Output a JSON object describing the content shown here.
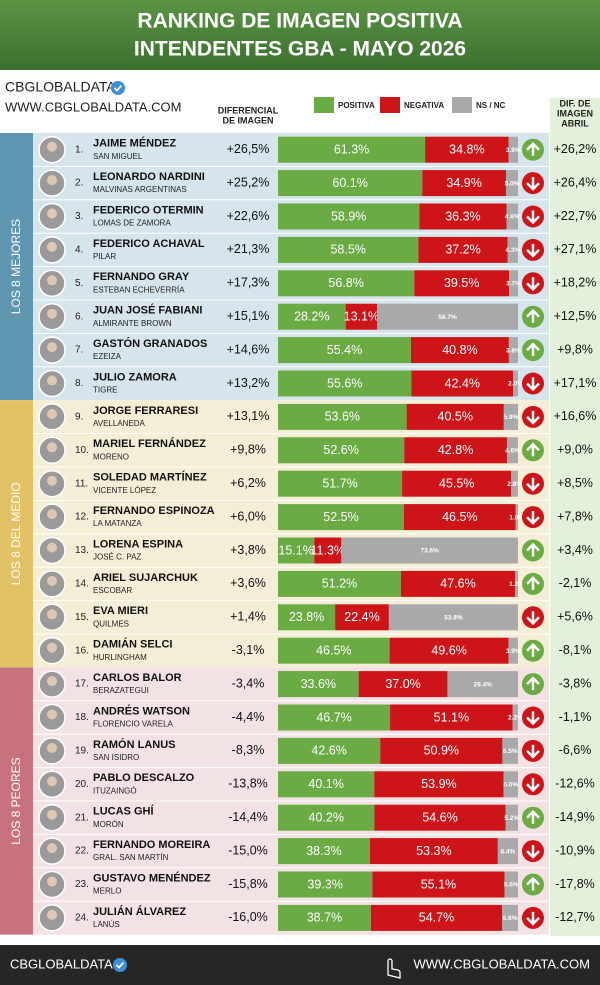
{
  "header": {
    "title_lines": [
      "RANKING DE IMAGEN POSITIVA",
      "INTENDENTES GBA - MAYO 2026"
    ]
  },
  "brand": {
    "name": "CBGLOBALDATA",
    "url": "WWW.CBGLOBALDATA.COM"
  },
  "columns": {
    "diff": [
      "DIFERENCIAL",
      "DE IMAGEN"
    ],
    "prev": [
      "DIF. DE",
      "IMAGEN",
      "ABRIL"
    ]
  },
  "legend": [
    {
      "name": "POSITIVA",
      "color": "#6aab43"
    },
    {
      "name": "NEGATIVA",
      "color": "#cc1419"
    },
    {
      "name": "NS / NC",
      "color": "#a9a9a9"
    }
  ],
  "groups": [
    {
      "label": "LOS 8 MEJORES",
      "color": "#5f97b2",
      "bg": "#d5e5eb",
      "rows": [
        {
          "rank": "1.",
          "name": "JAIME MÉNDEZ",
          "place": "SAN MIGUEL",
          "diff": "+26,5%",
          "values": [
            61.3,
            34.8,
            3.9
          ],
          "value_labels": [
            "61.3%",
            "34.8%",
            "3.9%"
          ],
          "trend": "up",
          "prev": "+26,2%"
        },
        {
          "rank": "2.",
          "name": "LEONARDO NARDINI",
          "place": "MALVINAS ARGENTINAS",
          "diff": "+25,2%",
          "values": [
            60.1,
            34.9,
            5.0
          ],
          "value_labels": [
            "60.1%",
            "34.9%",
            "5.0%"
          ],
          "trend": "down",
          "prev": "+26,4%"
        },
        {
          "rank": "3.",
          "name": "FEDERICO OTERMIN",
          "place": "LOMAS DE ZAMORA",
          "diff": "+22,6%",
          "values": [
            58.9,
            36.3,
            4.8
          ],
          "value_labels": [
            "58.9%",
            "36.3%",
            "4.8%"
          ],
          "trend": "down",
          "prev": "+22,7%"
        },
        {
          "rank": "4.",
          "name": "FEDERICO ACHAVAL",
          "place": "PILAR",
          "diff": "+21,3%",
          "values": [
            58.5,
            37.2,
            4.3
          ],
          "value_labels": [
            "58.5%",
            "37.2%",
            "4.3%"
          ],
          "trend": "down",
          "prev": "+27,1%"
        },
        {
          "rank": "5.",
          "name": "FERNANDO GRAY",
          "place": "ESTEBAN ECHEVERRÍA",
          "diff": "+17,3%",
          "values": [
            56.8,
            39.5,
            3.7
          ],
          "value_labels": [
            "56.8%",
            "39.5%",
            "3.7%"
          ],
          "trend": "down",
          "prev": "+18,2%"
        },
        {
          "rank": "6.",
          "name": "JUAN JOSÉ FABIANI",
          "place": "ALMIRANTE BROWN",
          "diff": "+15,1%",
          "values": [
            28.2,
            13.1,
            58.7
          ],
          "value_labels": [
            "28.2%",
            "13.1%",
            "58.7%"
          ],
          "trend": "up",
          "prev": "+12,5%"
        },
        {
          "rank": "7.",
          "name": "GASTÓN GRANADOS",
          "place": "EZEIZA",
          "diff": "+14,6%",
          "values": [
            55.4,
            40.8,
            3.8
          ],
          "value_labels": [
            "55.4%",
            "40.8%",
            "3.8%"
          ],
          "trend": "up",
          "prev": "+9,8%"
        },
        {
          "rank": "8.",
          "name": "JULIO ZAMORA",
          "place": "TIGRE",
          "diff": "+13,2%",
          "values": [
            55.6,
            42.4,
            2.0
          ],
          "value_labels": [
            "55.6%",
            "42.4%",
            "2.0%"
          ],
          "trend": "down",
          "prev": "+17,1%"
        }
      ]
    },
    {
      "label": "LOS 8 DEL MEDIO",
      "color": "#e2c264",
      "bg": "#f5eed6",
      "rows": [
        {
          "rank": "9.",
          "name": "JORGE FERRARESI",
          "place": "AVELLANEDA",
          "diff": "+13,1%",
          "values": [
            53.6,
            40.5,
            5.9
          ],
          "value_labels": [
            "53.6%",
            "40.5%",
            "5.9%"
          ],
          "trend": "down",
          "prev": "+16,6%"
        },
        {
          "rank": "10.",
          "name": "MARIEL FERNÁNDEZ",
          "place": "MORENO",
          "diff": "+9,8%",
          "values": [
            52.6,
            42.8,
            4.6
          ],
          "value_labels": [
            "52.6%",
            "42.8%",
            "4.6%"
          ],
          "trend": "up",
          "prev": "+9,0%"
        },
        {
          "rank": "11.",
          "name": "SOLEDAD MARTÍNEZ",
          "place": "VICENTE LÓPEZ",
          "diff": "+6,2%",
          "values": [
            51.7,
            45.5,
            2.8
          ],
          "value_labels": [
            "51.7%",
            "45.5%",
            "2.8%"
          ],
          "trend": "down",
          "prev": "+8,5%"
        },
        {
          "rank": "12.",
          "name": "FERNANDO ESPINOZA",
          "place": "LA MATANZA",
          "diff": "+6,0%",
          "values": [
            52.5,
            46.5,
            1.0
          ],
          "value_labels": [
            "52.5%",
            "46.5%",
            "1.0%"
          ],
          "trend": "down",
          "prev": "+7,8%"
        },
        {
          "rank": "13.",
          "name": "LORENA ESPINA",
          "place": "JOSÉ C. PAZ",
          "diff": "+3,8%",
          "values": [
            15.1,
            11.3,
            73.6
          ],
          "value_labels": [
            "15.1%",
            "11.3%",
            "73.6%"
          ],
          "trend": "up",
          "prev": "+3,4%"
        },
        {
          "rank": "14.",
          "name": "ARIEL SUJARCHUK",
          "place": "ESCOBAR",
          "diff": "+3,6%",
          "values": [
            51.2,
            47.6,
            1.2
          ],
          "value_labels": [
            "51.2%",
            "47.6%",
            "1.2%"
          ],
          "trend": "up",
          "prev": "-2,1%"
        },
        {
          "rank": "15.",
          "name": "EVA MIERI",
          "place": "QUILMES",
          "diff": "+1,4%",
          "values": [
            23.8,
            22.4,
            53.8
          ],
          "value_labels": [
            "23.8%",
            "22.4%",
            "53.8%"
          ],
          "trend": "down",
          "prev": "+5,6%"
        },
        {
          "rank": "16.",
          "name": "DAMIÁN SELCI",
          "place": "HURLINGHAM",
          "diff": "-3,1%",
          "values": [
            46.5,
            49.6,
            3.9
          ],
          "value_labels": [
            "46.5%",
            "49.6%",
            "3.9%"
          ],
          "trend": "up",
          "prev": "-8,1%"
        }
      ]
    },
    {
      "label": "LOS 8 PEORES",
      "color": "#c8727d",
      "bg": "#f2e2e4",
      "rows": [
        {
          "rank": "17.",
          "name": "CARLOS BALOR",
          "place": "BERAZATEGUI",
          "diff": "-3,4%",
          "values": [
            33.6,
            37.0,
            29.4
          ],
          "value_labels": [
            "33.6%",
            "37.0%",
            "29.4%"
          ],
          "trend": "up",
          "prev": "-3,8%"
        },
        {
          "rank": "18.",
          "name": "ANDRÉS WATSON",
          "place": "FLORENCIO VARELA",
          "diff": "-4,4%",
          "values": [
            46.7,
            51.1,
            2.2
          ],
          "value_labels": [
            "46.7%",
            "51.1%",
            "2.2%"
          ],
          "trend": "down",
          "prev": "-1,1%"
        },
        {
          "rank": "19.",
          "name": "RAMÓN LANUS",
          "place": "SAN ISIDRO",
          "diff": "-8,3%",
          "values": [
            42.6,
            50.9,
            6.5
          ],
          "value_labels": [
            "42.6%",
            "50.9%",
            "6.5%"
          ],
          "trend": "down",
          "prev": "-6,6%"
        },
        {
          "rank": "20.",
          "name": "PABLO DESCALZO",
          "place": "ITUZAINGÓ",
          "diff": "-13,8%",
          "values": [
            40.1,
            53.9,
            6.0
          ],
          "value_labels": [
            "40.1%",
            "53.9%",
            "6.0%"
          ],
          "trend": "down",
          "prev": "-12,6%"
        },
        {
          "rank": "21.",
          "name": "LUCAS GHÍ",
          "place": "MORÓN",
          "diff": "-14,4%",
          "values": [
            40.2,
            54.6,
            5.2
          ],
          "value_labels": [
            "40.2%",
            "54.6%",
            "5.2%"
          ],
          "trend": "up",
          "prev": "-14,9%"
        },
        {
          "rank": "22.",
          "name": "FERNANDO MOREIRA",
          "place": "GRAL. SAN MARTÍN",
          "diff": "-15,0%",
          "values": [
            38.3,
            53.3,
            8.4
          ],
          "value_labels": [
            "38.3%",
            "53.3%",
            "8.4%"
          ],
          "trend": "down",
          "prev": "-10,9%"
        },
        {
          "rank": "23.",
          "name": "GUSTAVO MENÉNDEZ",
          "place": "MERLO",
          "diff": "-15,8%",
          "values": [
            39.3,
            55.1,
            5.6
          ],
          "value_labels": [
            "39.3%",
            "55.1%",
            "5.6%"
          ],
          "trend": "up",
          "prev": "-17,8%"
        },
        {
          "rank": "24.",
          "name": "JULIÁN ÁLVAREZ",
          "place": "LANÚS",
          "diff": "-16,0%",
          "values": [
            38.7,
            54.7,
            6.6
          ],
          "value_labels": [
            "38.7%",
            "54.7%",
            "6.6%"
          ],
          "trend": "down",
          "prev": "-12,7%"
        }
      ]
    }
  ]
}
